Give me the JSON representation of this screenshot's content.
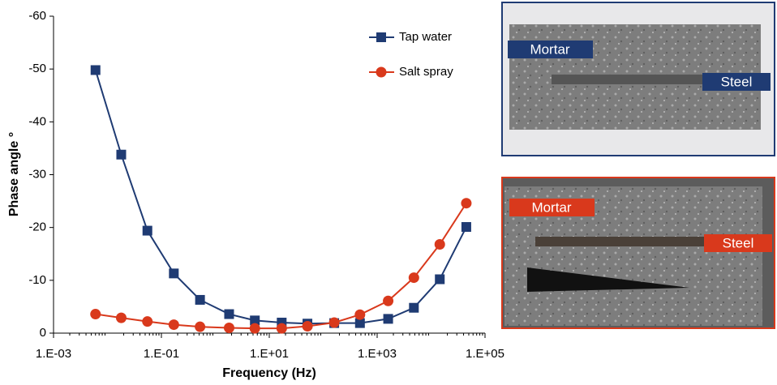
{
  "chart_data": {
    "type": "line",
    "y_label": "Phase angle °",
    "x_label": "Frequency (Hz)",
    "x": [
      0.006,
      0.018,
      0.055,
      0.17,
      0.52,
      1.8,
      5.4,
      17,
      51,
      160,
      480,
      1600,
      4800,
      14500,
      45000
    ],
    "series": [
      {
        "name": "Tap water",
        "color": "#1f3b73",
        "marker": "square",
        "values": [
          -49.8,
          -33.8,
          -19.4,
          -11.3,
          -6.3,
          -3.6,
          -2.4,
          -2.0,
          -1.8,
          -1.9,
          -1.9,
          -2.7,
          -4.8,
          -10.2,
          -20.1
        ]
      },
      {
        "name": "Salt spray",
        "color": "#d9391c",
        "marker": "circle",
        "values": [
          -3.6,
          -2.9,
          -2.2,
          -1.6,
          -1.2,
          -1.0,
          -0.9,
          -0.9,
          -1.3,
          -2.0,
          -3.5,
          -6.1,
          -10.5,
          -16.8,
          -24.6
        ]
      }
    ],
    "xlog": true,
    "xlim": [
      0.001,
      100000
    ],
    "xticks": [
      {
        "value": 0.001,
        "label": "1.E-03"
      },
      {
        "value": 0.1,
        "label": "1.E-01"
      },
      {
        "value": 10,
        "label": "1.E+01"
      },
      {
        "value": 1000,
        "label": "1.E+03"
      },
      {
        "value": 100000,
        "label": "1.E+05"
      }
    ],
    "ylim": [
      0,
      -60
    ],
    "yticks": [
      0,
      -10,
      -20,
      -30,
      -40,
      -50,
      -60
    ],
    "legend": "upper right"
  },
  "photos": [
    {
      "labels": [
        "Mortar",
        "Steel"
      ]
    },
    {
      "labels": [
        "Mortar",
        "Steel"
      ]
    }
  ]
}
